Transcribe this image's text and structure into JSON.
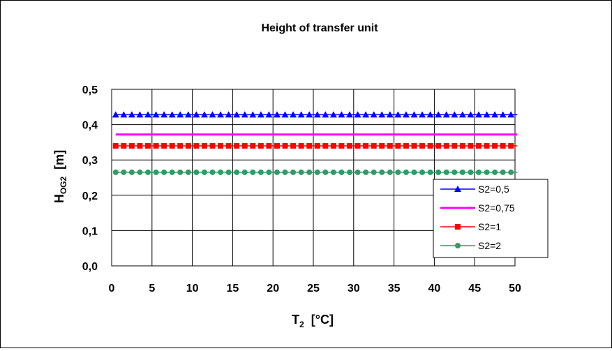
{
  "chart_data": {
    "type": "line",
    "title": "Height of transfer unit",
    "xlabel_main": "T",
    "xlabel_sub": "2",
    "xlabel_unit": "[°C]",
    "ylabel_main": "H",
    "ylabel_sub": "OG2",
    "ylabel_unit": "[m]",
    "xlim": [
      0,
      50
    ],
    "ylim": [
      0,
      0.5
    ],
    "x_ticks": [
      0,
      5,
      10,
      15,
      20,
      25,
      30,
      35,
      40,
      45,
      50
    ],
    "x_tick_labels": [
      "0",
      "5",
      "10",
      "15",
      "20",
      "25",
      "30",
      "35",
      "40",
      "45",
      "50"
    ],
    "y_ticks": [
      0,
      0.1,
      0.2,
      0.3,
      0.4,
      0.5
    ],
    "y_tick_labels": [
      "0,0",
      "0,1",
      "0,2",
      "0,3",
      "0,4",
      "0,5"
    ],
    "grid": true,
    "legend_position": "right",
    "x_step": 1,
    "series": [
      {
        "name": "S2=0,5",
        "value": 0.428,
        "color": "#0000ff",
        "marker": "triangle"
      },
      {
        "name": "S2=0,75",
        "value": 0.372,
        "color": "#ff00ff",
        "marker": "none"
      },
      {
        "name": "S2=1",
        "value": 0.34,
        "color": "#ff0000",
        "marker": "square"
      },
      {
        "name": "S2=2",
        "value": 0.265,
        "color": "#339966",
        "marker": "circle"
      }
    ]
  }
}
